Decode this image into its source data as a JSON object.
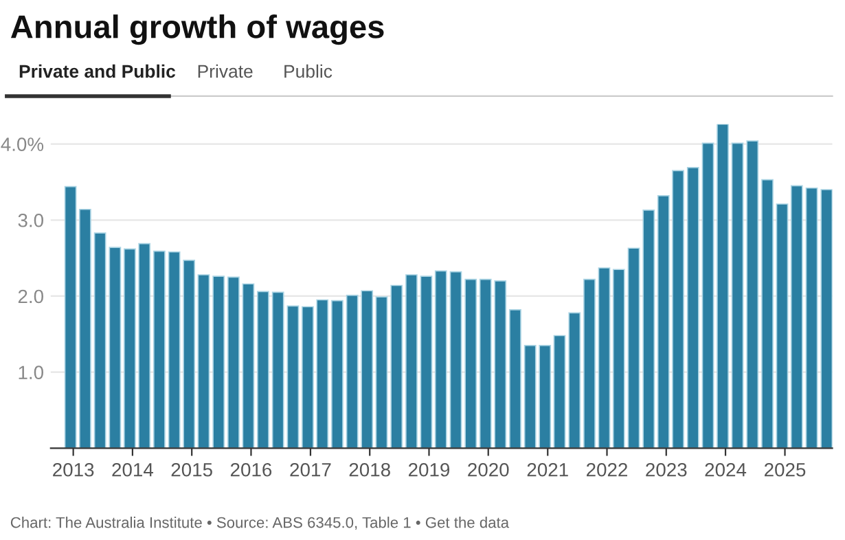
{
  "chart_data": {
    "type": "bar",
    "title": "Annual growth of wages",
    "annotations": [
      "Private and Public",
      "Private",
      "Public",
      "Chart: The Australia Institute • Source: ABS 6345.0, Table 1 • Get the data"
    ],
    "x": [
      "2012-12",
      "2013-03",
      "2013-06",
      "2013-09",
      "2013-12",
      "2014-03",
      "2014-06",
      "2014-09",
      "2014-12",
      "2015-03",
      "2015-06",
      "2015-09",
      "2015-12",
      "2016-03",
      "2016-06",
      "2016-09",
      "2016-12",
      "2017-03",
      "2017-06",
      "2017-09",
      "2017-12",
      "2018-03",
      "2018-06",
      "2018-09",
      "2018-12",
      "2019-03",
      "2019-06",
      "2019-09",
      "2019-12",
      "2020-03",
      "2020-06",
      "2020-09",
      "2020-12",
      "2021-03",
      "2021-06",
      "2021-09",
      "2021-12",
      "2022-03",
      "2022-06",
      "2022-09",
      "2022-12",
      "2023-03",
      "2023-06",
      "2023-09",
      "2023-12",
      "2024-03",
      "2024-06",
      "2024-09",
      "2024-12",
      "2025-03",
      "2025-06",
      "2025-09"
    ],
    "values": [
      3.44,
      3.14,
      2.83,
      2.64,
      2.62,
      2.69,
      2.59,
      2.58,
      2.47,
      2.28,
      2.26,
      2.25,
      2.16,
      2.06,
      2.05,
      1.87,
      1.86,
      1.95,
      1.94,
      2.01,
      2.07,
      1.99,
      2.14,
      2.28,
      2.26,
      2.33,
      2.32,
      2.22,
      2.22,
      2.2,
      1.82,
      1.35,
      1.35,
      1.48,
      1.78,
      2.22,
      2.37,
      2.35,
      2.63,
      3.13,
      3.32,
      3.65,
      3.69,
      4.01,
      4.26,
      4.01,
      4.04,
      3.53,
      3.21,
      3.45,
      3.42,
      3.4
    ],
    "color": "#2b7fa2",
    "xlim": [
      "2012-08-15",
      "2025-10-20"
    ],
    "xticks": [
      {
        "value": "2013-01-01",
        "label": "2013"
      },
      {
        "value": "2014-01-01",
        "label": "2014"
      },
      {
        "value": "2015-01-01",
        "label": "2015"
      },
      {
        "value": "2016-01-01",
        "label": "2016"
      },
      {
        "value": "2017-01-01",
        "label": "2017"
      },
      {
        "value": "2018-01-01",
        "label": "2018"
      },
      {
        "value": "2019-01-01",
        "label": "2019"
      },
      {
        "value": "2020-01-01",
        "label": "2020"
      },
      {
        "value": "2021-01-01",
        "label": "2021"
      },
      {
        "value": "2022-01-01",
        "label": "2022"
      },
      {
        "value": "2023-01-01",
        "label": "2023"
      },
      {
        "value": "2024-01-01",
        "label": "2024"
      },
      {
        "value": "2025-01-01",
        "label": "2025"
      }
    ],
    "ylim": [
      0,
      4.26
    ],
    "yticks": [
      {
        "value": 1,
        "label": "1.0"
      },
      {
        "value": 2,
        "label": "2.0"
      },
      {
        "value": 3,
        "label": "3.0"
      },
      {
        "value": 4,
        "label": "4.0%"
      }
    ],
    "grid": "y",
    "legend": false
  }
}
